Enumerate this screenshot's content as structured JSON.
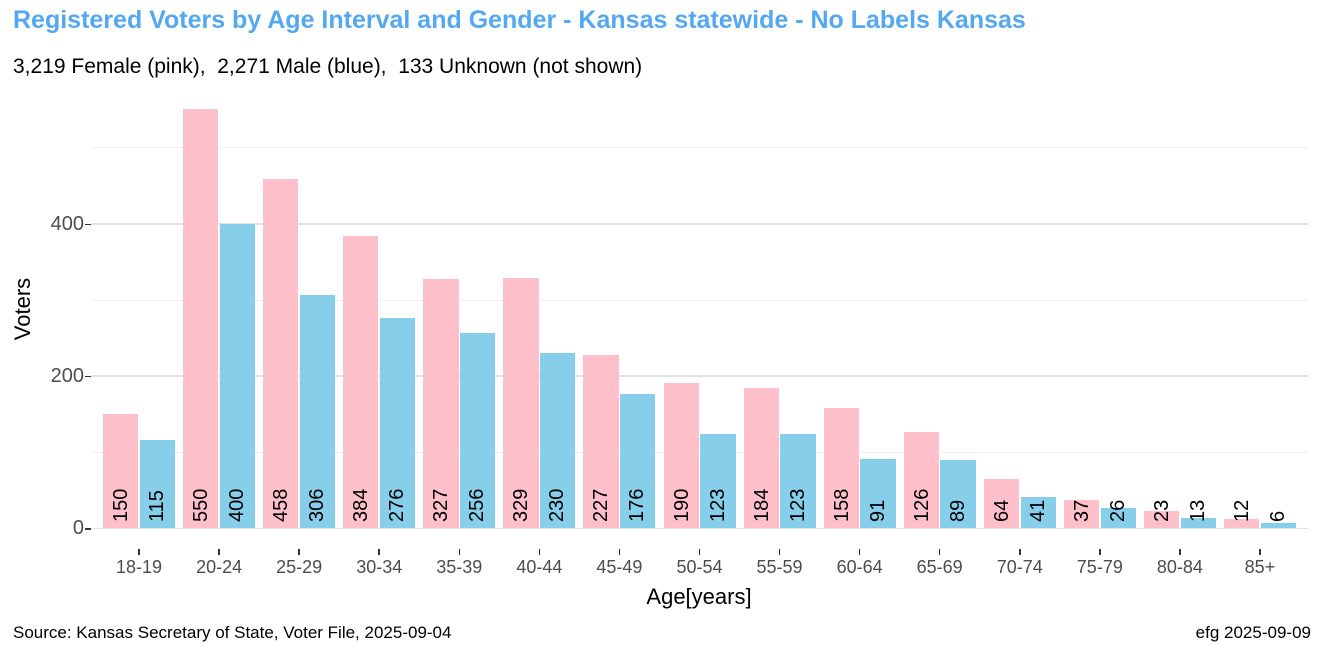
{
  "header": {
    "title": "Registered Voters by Age Interval and Gender - Kansas statewide - No Labels Kansas",
    "subtitle": "3,219 Female (pink),  2,271 Male (blue),  133 Unknown (not shown)"
  },
  "footer": {
    "source": "Source: Kansas Secretary of State, Voter File, 2025-09-04",
    "credit": "efg 2025-09-09"
  },
  "totals": {
    "female": "3,219",
    "male": "2,271",
    "unknown": "133"
  },
  "colors": {
    "title_blue": "#55A8F0",
    "female_pink": "#FFC0CB",
    "male_blue": "#87CEEB",
    "grid_major": "#E2E2E2",
    "grid_minor": "#F0F0F0",
    "axis_text": "#4d4d4d",
    "tick_mark": "#333333",
    "bar_label": "#000000"
  },
  "chart_data": {
    "type": "bar",
    "title": "Registered Voters by Age Interval and Gender - Kansas statewide - No Labels Kansas",
    "xlabel": "Age[years]",
    "ylabel": "Voters",
    "categories": [
      "18-19",
      "20-24",
      "25-29",
      "30-34",
      "35-39",
      "40-44",
      "45-49",
      "50-54",
      "55-59",
      "60-64",
      "65-69",
      "70-74",
      "75-79",
      "80-84",
      "85+"
    ],
    "series": [
      {
        "name": "Female",
        "color": "#FFC0CB",
        "values": [
          150,
          550,
          458,
          384,
          327,
          329,
          227,
          190,
          184,
          158,
          126,
          64,
          37,
          23,
          12
        ]
      },
      {
        "name": "Male",
        "color": "#87CEEB",
        "values": [
          115,
          400,
          306,
          276,
          256,
          230,
          176,
          123,
          123,
          91,
          89,
          41,
          26,
          13,
          6
        ]
      }
    ],
    "bar_labels_shown": true,
    "bar_label_rotation_deg": 90,
    "ylim": [
      0,
      578
    ],
    "yticks": [
      0,
      200,
      400
    ],
    "grid_major_at": [
      0,
      200,
      400
    ],
    "grid_minor_at": [
      100,
      300,
      500
    ],
    "legend_position": "none",
    "grid": "horizontal-only",
    "background": "#ffffff"
  }
}
